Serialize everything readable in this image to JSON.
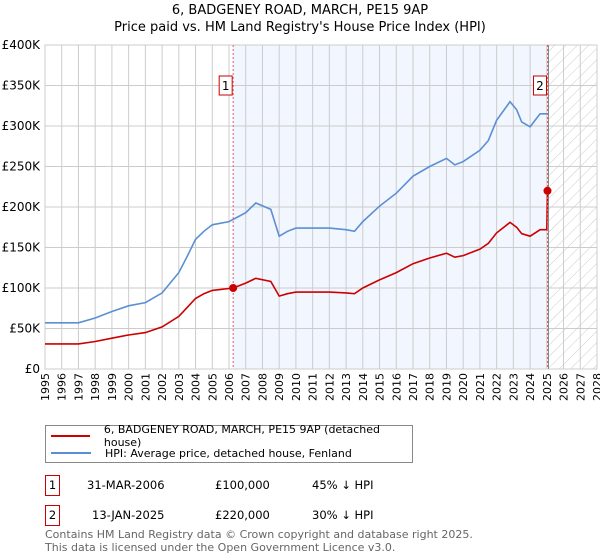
{
  "title": "6, BADGENEY ROAD, MARCH, PE15 9AP",
  "subtitle": "Price paid vs. HM Land Registry's House Price Index (HPI)",
  "chart_data": {
    "type": "line",
    "xlim": [
      1995,
      2028
    ],
    "ylim": [
      0,
      400000
    ],
    "yticks": [
      {
        "v": 0,
        "label": "£0"
      },
      {
        "v": 50000,
        "label": "£50K"
      },
      {
        "v": 100000,
        "label": "£100K"
      },
      {
        "v": 150000,
        "label": "£150K"
      },
      {
        "v": 200000,
        "label": "£200K"
      },
      {
        "v": 250000,
        "label": "£250K"
      },
      {
        "v": 300000,
        "label": "£300K"
      },
      {
        "v": 350000,
        "label": "£350K"
      },
      {
        "v": 400000,
        "label": "£400K"
      }
    ],
    "xticks": [
      1995,
      1996,
      1997,
      1998,
      1999,
      2000,
      2001,
      2002,
      2003,
      2004,
      2005,
      2006,
      2007,
      2008,
      2009,
      2010,
      2011,
      2012,
      2013,
      2014,
      2015,
      2016,
      2017,
      2018,
      2019,
      2020,
      2021,
      2022,
      2023,
      2024,
      2025,
      2026,
      2027,
      2028
    ],
    "grid": true,
    "series": [
      {
        "name": "HPI: Average price, detached house, Fenland",
        "color": "#5b8fd4",
        "x": [
          1995,
          1996,
          1997,
          1998,
          1999,
          2000,
          2001,
          2002,
          2003,
          2003.5,
          2004,
          2004.5,
          2005,
          2006,
          2007,
          2007.6,
          2008.5,
          2009,
          2009.5,
          2010,
          2011,
          2012,
          2013,
          2013.5,
          2014,
          2015,
          2016,
          2017,
          2018,
          2019,
          2019.5,
          2020,
          2021,
          2021.5,
          2022,
          2022.8,
          2023.2,
          2023.5,
          2024,
          2024.6,
          2025.05
        ],
        "y": [
          57000,
          57000,
          57000,
          63000,
          71000,
          78000,
          82000,
          94000,
          119000,
          139000,
          160000,
          170000,
          178000,
          182000,
          193000,
          205000,
          197000,
          164000,
          170000,
          174000,
          174000,
          174000,
          172000,
          170000,
          182000,
          201000,
          217000,
          238000,
          250000,
          260000,
          252000,
          256000,
          270000,
          282000,
          307000,
          330000,
          320000,
          305000,
          299000,
          315000,
          315000
        ]
      },
      {
        "name": "6, BADGENEY ROAD, MARCH, PE15 9AP (detached house)",
        "color": "#cc0000",
        "x": [
          1995,
          1996,
          1997,
          1998,
          1999,
          2000,
          2001,
          2002,
          2003,
          2003.5,
          2004,
          2004.5,
          2005,
          2006.25,
          2007,
          2007.6,
          2008.5,
          2009,
          2009.5,
          2010,
          2011,
          2012,
          2013,
          2013.5,
          2014,
          2015,
          2016,
          2017,
          2018,
          2019,
          2019.5,
          2020,
          2021,
          2021.5,
          2022,
          2022.8,
          2023.2,
          2023.5,
          2024,
          2024.6,
          2025.0,
          2025.04
        ],
        "y": [
          31000,
          31000,
          31000,
          34000,
          38000,
          42000,
          45000,
          52000,
          65000,
          76000,
          87000,
          93000,
          97000,
          100000,
          106000,
          112000,
          108000,
          90000,
          93000,
          95000,
          95000,
          95000,
          94000,
          93000,
          100000,
          110000,
          119000,
          130000,
          137000,
          143000,
          138000,
          140000,
          148000,
          155000,
          168000,
          181000,
          175000,
          167000,
          164000,
          172000,
          172000,
          220000
        ]
      }
    ],
    "sales": [
      {
        "id": "1",
        "x": 2006.25,
        "y": 100000
      },
      {
        "id": "2",
        "x": 2025.04,
        "y": 220000
      }
    ],
    "shaded_between": [
      2006.25,
      2025.04
    ],
    "hatched_after": 2025.1
  },
  "legend": [
    {
      "label": "6, BADGENEY ROAD, MARCH, PE15 9AP (detached house)",
      "color": "#cc0000"
    },
    {
      "label": "HPI: Average price, detached house, Fenland",
      "color": "#5b8fd4"
    }
  ],
  "sales_table": [
    {
      "num": "1",
      "date": "31-MAR-2006",
      "price": "£100,000",
      "hpi": "45% ↓ HPI"
    },
    {
      "num": "2",
      "date": "13-JAN-2025",
      "price": "£220,000",
      "hpi": "30% ↓ HPI"
    }
  ],
  "footer": [
    "Contains HM Land Registry data © Crown copyright and database right 2025.",
    "This data is licensed under the Open Government Licence v3.0."
  ]
}
